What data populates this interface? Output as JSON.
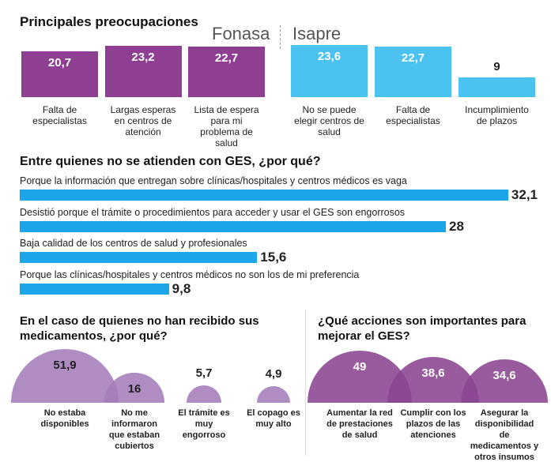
{
  "chart_data": [
    {
      "type": "bar",
      "title": "Principales preocupaciones",
      "subtitle": "Fonasa",
      "categories": [
        "Falta de especialistas",
        "Largas esperas en centros de atención",
        "Lista de espera para mi problema de salud"
      ],
      "values": [
        20.7,
        23.2,
        22.7
      ],
      "value_labels": [
        "20,7",
        "23,2",
        "22,7"
      ],
      "color": "#8e3f92"
    },
    {
      "type": "bar",
      "title": "Isapre",
      "categories": [
        "No se puede elegir centros de salud",
        "Falta de especialistas",
        "Incumplimiento de plazos"
      ],
      "values": [
        23.6,
        22.7,
        9
      ],
      "value_labels": [
        "23,6",
        "22,7",
        "9"
      ],
      "color": "#4cc2f0"
    },
    {
      "type": "hbar",
      "title": "Entre quienes no se atienden con GES, ¿por qué?",
      "categories": [
        "Porque la información que entregan sobre clínicas/hospitales y centros médicos es vaga",
        "Desistió porque el trámite o procedimientos para acceder y usar el GES son engorrosos",
        "Baja calidad de los centros de salud y profesionales",
        "Porque las clínicas/hospitales y centros médicos no son los de mi preferencia"
      ],
      "values": [
        32.1,
        28,
        15.6,
        9.8
      ],
      "value_labels": [
        "32,1",
        "28",
        "15,6",
        "9,8"
      ],
      "color": "#1ba6ea"
    },
    {
      "type": "semicircle",
      "title": "En el caso de quienes no han recibido sus medicamentos, ¿por qué?",
      "categories": [
        "No estaba disponibles",
        "No me informaron que estaban cubiertos",
        "El trámite es muy engorroso",
        "El copago es muy alto"
      ],
      "values": [
        51.9,
        16,
        5.7,
        4.9
      ],
      "value_labels": [
        "51,9",
        "16",
        "5,7",
        "4,9"
      ],
      "color": "#a47cb8"
    },
    {
      "type": "semicircle",
      "title": "¿Qué acciones son importantes para mejorar el GES?",
      "categories": [
        "Aumentar la red de prestaciones de salud",
        "Cumplir con los plazos de las atenciones",
        "Asegurar la disponibilidad de medicamentos y otros insumos"
      ],
      "values": [
        49,
        38.6,
        34.6
      ],
      "value_labels": [
        "49",
        "38,6",
        "34,6"
      ],
      "color": "#8a4691"
    }
  ]
}
